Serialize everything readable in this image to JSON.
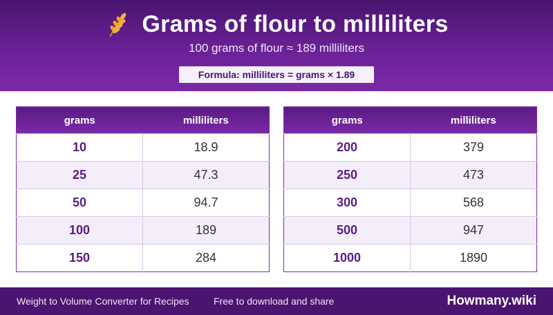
{
  "header": {
    "icon": "wheat-icon",
    "title": "Grams of flour to milliliters",
    "subtitle": "100 grams of flour ≈ 189 milliliters",
    "formula": "Formula: milliliters = grams × 1.89"
  },
  "colors": {
    "primary": "#6a2196",
    "dark": "#4a1470",
    "row_alt": "#f4eefa",
    "accent_text": "#5a1b84"
  },
  "table_left": {
    "columns": [
      "grams",
      "milliliters"
    ],
    "rows": [
      {
        "grams": "10",
        "ml": "18.9"
      },
      {
        "grams": "25",
        "ml": "47.3"
      },
      {
        "grams": "50",
        "ml": "94.7"
      },
      {
        "grams": "100",
        "ml": "189"
      },
      {
        "grams": "150",
        "ml": "284"
      }
    ]
  },
  "table_right": {
    "columns": [
      "grams",
      "milliliters"
    ],
    "rows": [
      {
        "grams": "200",
        "ml": "379"
      },
      {
        "grams": "250",
        "ml": "473"
      },
      {
        "grams": "300",
        "ml": "568"
      },
      {
        "grams": "500",
        "ml": "947"
      },
      {
        "grams": "1000",
        "ml": "1890"
      }
    ]
  },
  "footer": {
    "left": "Weight to Volume Converter for Recipes",
    "middle": "Free to download and share",
    "brand": "Howmany.wiki"
  }
}
